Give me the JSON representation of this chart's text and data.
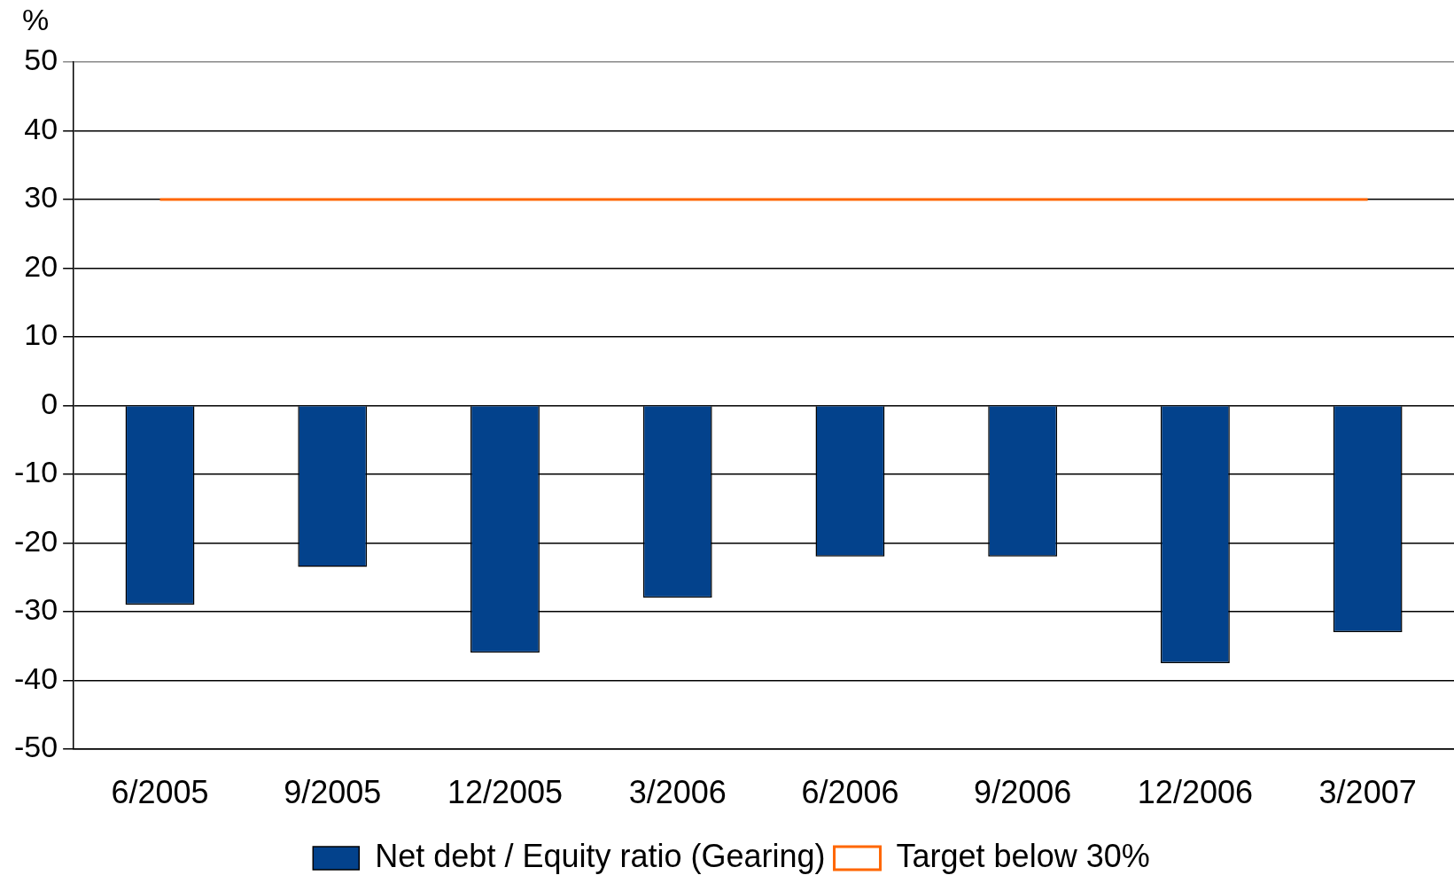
{
  "chart_data": {
    "type": "bar",
    "ylabel": "%",
    "categories": [
      "6/2005",
      "9/2005",
      "12/2005",
      "3/2006",
      "6/2006",
      "9/2006",
      "12/2006",
      "3/2007"
    ],
    "series": [
      {
        "name": "Net debt / Equity ratio (Gearing)",
        "color": "#03428c",
        "values": [
          -29,
          -23.5,
          -36,
          -28,
          -22,
          -22,
          -37.5,
          -33
        ]
      },
      {
        "name": "Target below 30%",
        "type": "line",
        "color": "#ff6600",
        "values": [
          30,
          30,
          30,
          30,
          30,
          30,
          30,
          30
        ]
      }
    ],
    "ylim": [
      -50,
      50
    ],
    "yticks": [
      -50,
      -40,
      -30,
      -20,
      -10,
      0,
      10,
      20,
      30,
      40,
      50
    ],
    "grid": "y",
    "legend": "bottom",
    "marker": "none"
  }
}
